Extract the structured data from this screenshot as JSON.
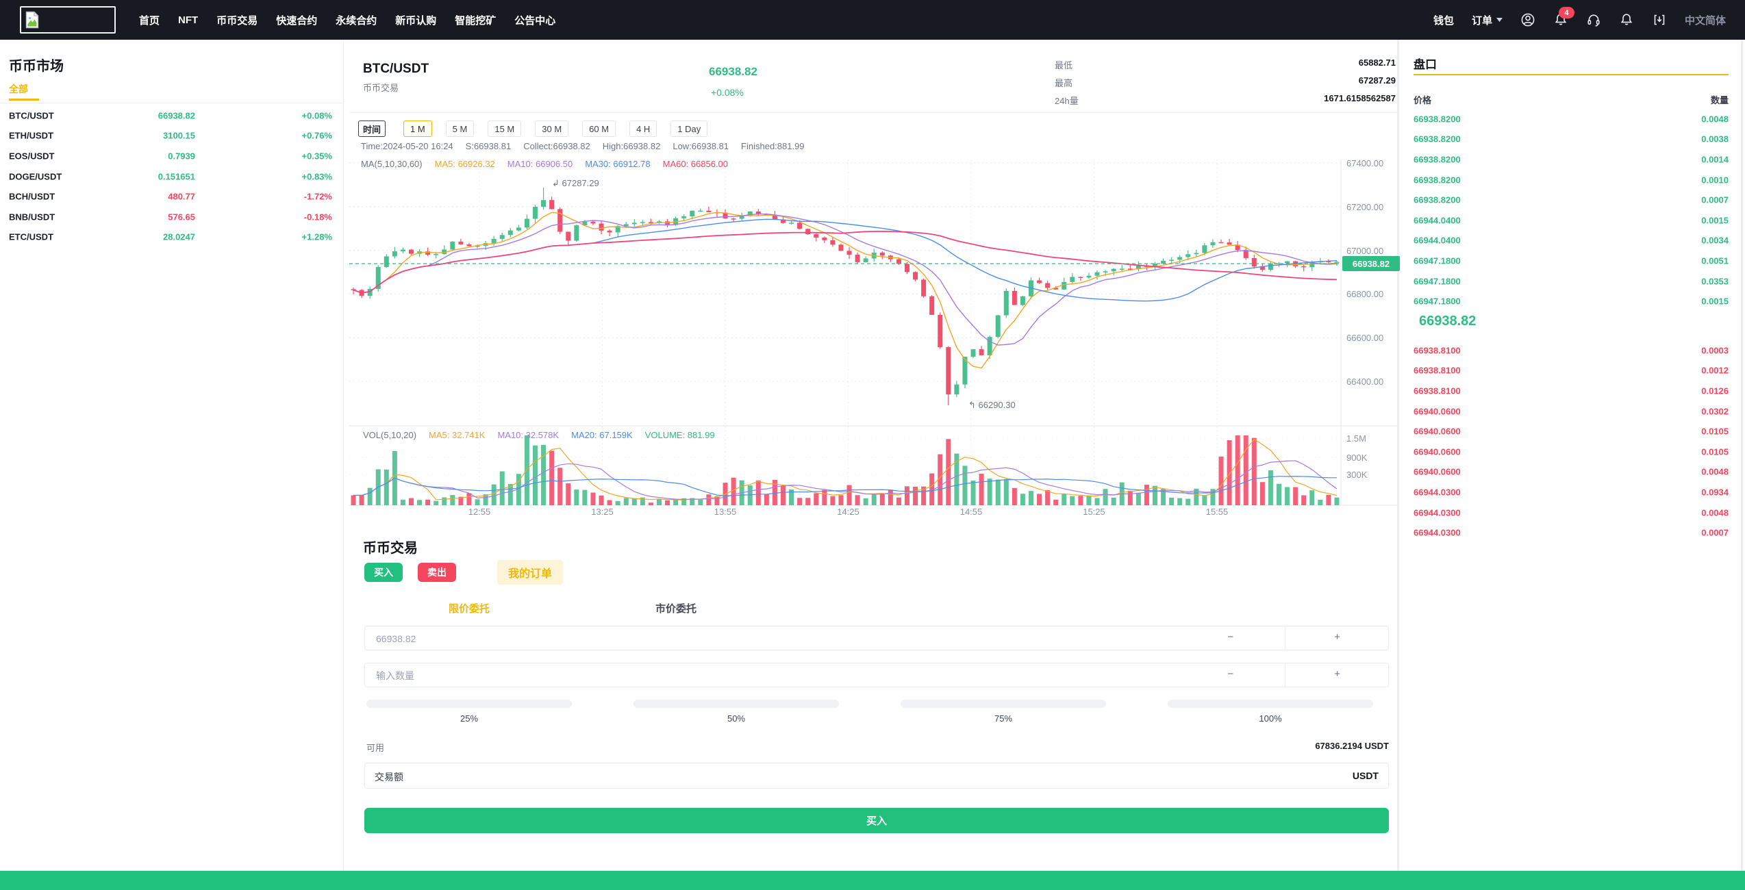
{
  "navbar": {
    "menu": [
      "首页",
      "NFT",
      "币币交易",
      "快速合约",
      "永续合约",
      "新币认购",
      "智能挖矿",
      "公告中心"
    ],
    "wallet": "钱包",
    "orders": "订单",
    "badge": "4",
    "language": "中文简体"
  },
  "sidebar": {
    "title": "币币市场",
    "tab": "全部",
    "pairs": [
      {
        "name": "BTC/USDT",
        "price": "66938.82",
        "change": "+0.08%",
        "dir": "up"
      },
      {
        "name": "ETH/USDT",
        "price": "3100.15",
        "change": "+0.76%",
        "dir": "up"
      },
      {
        "name": "EOS/USDT",
        "price": "0.7939",
        "change": "+0.35%",
        "dir": "up"
      },
      {
        "name": "DOGE/USDT",
        "price": "0.151651",
        "change": "+0.83%",
        "dir": "up"
      },
      {
        "name": "BCH/USDT",
        "price": "480.77",
        "change": "-1.72%",
        "dir": "down"
      },
      {
        "name": "BNB/USDT",
        "price": "576.65",
        "change": "-0.18%",
        "dir": "down"
      },
      {
        "name": "ETC/USDT",
        "price": "28.0247",
        "change": "+1.28%",
        "dir": "up"
      }
    ]
  },
  "header": {
    "symbol": "BTC/USDT",
    "subtitle": "币币交易",
    "price": "66938.82",
    "change": "+0.08%",
    "stats": [
      {
        "label": "最低",
        "value": "65882.71"
      },
      {
        "label": "最高",
        "value": "67287.29"
      },
      {
        "label": "24h量",
        "value": "1671.6158562587"
      }
    ]
  },
  "toolbar": {
    "time_label": "时间",
    "intervals": [
      "1 M",
      "5 M",
      "15 M",
      "30 M",
      "60 M",
      "4 H",
      "1 Day"
    ],
    "active": "1 M"
  },
  "chart": {
    "legend_ohlc": [
      {
        "text": "Time:2024-05-20 16:24",
        "color": "#6f7886"
      },
      {
        "text": "S:66938.81",
        "color": "#6f7886"
      },
      {
        "text": "Collect:66938.82",
        "color": "#6f7886"
      },
      {
        "text": "High:66938.82",
        "color": "#6f7886"
      },
      {
        "text": "Low:66938.81",
        "color": "#6f7886"
      },
      {
        "text": "Finished:881.99",
        "color": "#6f7886"
      }
    ],
    "legend_ma": [
      {
        "text": "MA(5,10,30,60)",
        "color": "#6f7886"
      },
      {
        "text": "MA5: 66926.32",
        "color": "#f5a623"
      },
      {
        "text": "MA10: 66906.50",
        "color": "#a779e6"
      },
      {
        "text": "MA30: 66912.78",
        "color": "#4a8df0"
      },
      {
        "text": "MA60: 66856.00",
        "color": "#f5475d"
      }
    ],
    "legend_vol": [
      {
        "text": "VOL(5,10,20)",
        "color": "#6f7886"
      },
      {
        "text": "MA5: 32.741K",
        "color": "#f5a623"
      },
      {
        "text": "MA10: 32.578K",
        "color": "#a779e6"
      },
      {
        "text": "MA20: 67.159K",
        "color": "#4a8df0"
      },
      {
        "text": "VOLUME: 881.99",
        "color": "#2ebd85"
      }
    ],
    "price_tag": "66938.82",
    "annotations": {
      "high": {
        "arrow": "↲",
        "text": "67287.29"
      },
      "low": {
        "arrow": "↰",
        "text": "66290.30"
      }
    },
    "chart_data": {
      "type": "candlestick+volume",
      "symbol": "BTC/USDT",
      "interval": "1m",
      "y_ticks": [
        67400,
        67200,
        67000,
        66800,
        66600,
        66400
      ],
      "ylim": [
        66290,
        67400
      ],
      "x_ticks": [
        "12:55",
        "13:25",
        "13:55",
        "14:25",
        "14:55",
        "15:25",
        "15:55"
      ],
      "vol_ticks": [
        "1.5M",
        "900K",
        "300K"
      ],
      "current_price": 66938.82,
      "session_high": 67287.29,
      "session_low": 66290.3,
      "ma_periods": [
        5,
        10,
        30,
        60
      ],
      "vol_ma_periods": [
        5,
        10,
        20
      ],
      "colors": {
        "up": "#4cbf90",
        "down": "#f1506a",
        "ma5": "#f5a623",
        "ma10": "#a779e6",
        "ma30": "#4a8df0",
        "ma60": "#ef477d",
        "grid": "#e9ecf1",
        "axis": "#e3e6ea",
        "current": "#2ebd85"
      },
      "price_anchors": [
        [
          0,
          66830
        ],
        [
          0.01,
          66770
        ],
        [
          0.03,
          66960
        ],
        [
          0.05,
          67000
        ],
        [
          0.08,
          66980
        ],
        [
          0.105,
          67040
        ],
        [
          0.13,
          67010
        ],
        [
          0.155,
          67070
        ],
        [
          0.175,
          67140
        ],
        [
          0.197,
          67265
        ],
        [
          0.205,
          67150
        ],
        [
          0.215,
          67020
        ],
        [
          0.23,
          67130
        ],
        [
          0.26,
          67090
        ],
        [
          0.29,
          67140
        ],
        [
          0.32,
          67120
        ],
        [
          0.35,
          67185
        ],
        [
          0.38,
          67150
        ],
        [
          0.41,
          67175
        ],
        [
          0.44,
          67130
        ],
        [
          0.47,
          67060
        ],
        [
          0.5,
          66990
        ],
        [
          0.515,
          66940
        ],
        [
          0.53,
          67000
        ],
        [
          0.55,
          66950
        ],
        [
          0.57,
          66890
        ],
        [
          0.59,
          66680
        ],
        [
          0.601,
          66460
        ],
        [
          0.608,
          66310
        ],
        [
          0.617,
          66450
        ],
        [
          0.627,
          66560
        ],
        [
          0.637,
          66490
        ],
        [
          0.652,
          66660
        ],
        [
          0.663,
          66810
        ],
        [
          0.673,
          66750
        ],
        [
          0.69,
          66860
        ],
        [
          0.71,
          66810
        ],
        [
          0.735,
          66880
        ],
        [
          0.765,
          66905
        ],
        [
          0.795,
          66925
        ],
        [
          0.825,
          66945
        ],
        [
          0.855,
          66985
        ],
        [
          0.878,
          67050
        ],
        [
          0.9,
          66995
        ],
        [
          0.922,
          66905
        ],
        [
          0.942,
          66955
        ],
        [
          0.962,
          66925
        ],
        [
          0.985,
          66945
        ],
        [
          1,
          66938.82
        ]
      ],
      "volume_anchors": [
        [
          0,
          150
        ],
        [
          0.02,
          320
        ],
        [
          0.035,
          1350
        ],
        [
          0.05,
          220
        ],
        [
          0.09,
          120
        ],
        [
          0.13,
          260
        ],
        [
          0.16,
          950
        ],
        [
          0.175,
          1500
        ],
        [
          0.19,
          1150
        ],
        [
          0.21,
          750
        ],
        [
          0.24,
          220
        ],
        [
          0.28,
          120
        ],
        [
          0.32,
          110
        ],
        [
          0.36,
          160
        ],
        [
          0.4,
          720
        ],
        [
          0.425,
          420
        ],
        [
          0.46,
          200
        ],
        [
          0.5,
          320
        ],
        [
          0.55,
          260
        ],
        [
          0.585,
          750
        ],
        [
          0.6,
          1500
        ],
        [
          0.615,
          1100
        ],
        [
          0.632,
          620
        ],
        [
          0.66,
          420
        ],
        [
          0.7,
          300
        ],
        [
          0.73,
          160
        ],
        [
          0.76,
          210
        ],
        [
          0.8,
          520
        ],
        [
          0.83,
          300
        ],
        [
          0.87,
          260
        ],
        [
          0.9,
          1400
        ],
        [
          0.915,
          1150
        ],
        [
          0.932,
          600
        ],
        [
          0.952,
          320
        ],
        [
          0.972,
          260
        ],
        [
          1,
          220
        ]
      ]
    }
  },
  "orderbook": {
    "title": "盘口",
    "price_col": "价格",
    "amount_col": "数量",
    "asks": [
      [
        "66938.8200",
        "0.0048"
      ],
      [
        "66938.8200",
        "0.0038"
      ],
      [
        "66938.8200",
        "0.0014"
      ],
      [
        "66938.8200",
        "0.0010"
      ],
      [
        "66938.8200",
        "0.0007"
      ],
      [
        "66944.0400",
        "0.0015"
      ],
      [
        "66944.0400",
        "0.0034"
      ],
      [
        "66947.1800",
        "0.0051"
      ],
      [
        "66947.1800",
        "0.0353"
      ],
      [
        "66947.1800",
        "0.0015"
      ]
    ],
    "current": "66938.82",
    "bids": [
      [
        "66938.8100",
        "0.0003"
      ],
      [
        "66938.8100",
        "0.0012"
      ],
      [
        "66938.8100",
        "0.0126"
      ],
      [
        "66940.0600",
        "0.0302"
      ],
      [
        "66940.0600",
        "0.0105"
      ],
      [
        "66940.0600",
        "0.0105"
      ],
      [
        "66940.0600",
        "0.0048"
      ],
      [
        "66944.0300",
        "0.0934"
      ],
      [
        "66944.0300",
        "0.0048"
      ],
      [
        "66944.0300",
        "0.0007"
      ]
    ]
  },
  "trade": {
    "title": "币币交易",
    "buy": "买入",
    "sell": "卖出",
    "my_orders": "我的订单",
    "tab_limit": "限价委托",
    "tab_market": "市价委托",
    "price_value": "66938.82",
    "qty_placeholder": "输入数量",
    "minus": "−",
    "plus": "+",
    "percents": [
      "25%",
      "50%",
      "75%",
      "100%"
    ],
    "available_label": "可用",
    "available_value": "67836.2194 USDT",
    "amount_label": "交易额",
    "amount_unit": "USDT",
    "submit": "买入"
  }
}
